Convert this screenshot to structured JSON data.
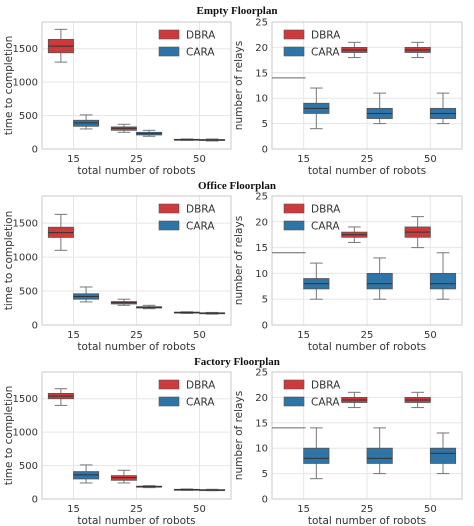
{
  "colors": {
    "dbra": "#cc3a3c",
    "cara": "#2f74a6",
    "grid": "#e6e6e6",
    "median": "#333333"
  },
  "chart_data": [
    {
      "type": "box",
      "row_title": "Empty Floorplan",
      "xlabel": "total number of robots",
      "ylabel": "time to completion",
      "categories": [
        "15",
        "25",
        "50"
      ],
      "ylim": [
        0,
        1900
      ],
      "yticks": [
        "0",
        "500",
        "1000",
        "1500"
      ],
      "legend": [
        "DBRA",
        "CARA"
      ],
      "series": [
        {
          "name": "DBRA",
          "boxes": [
            {
              "whislo": 1300,
              "q1": 1440,
              "med": 1540,
              "q3": 1640,
              "whishi": 1790
            },
            {
              "whislo": 250,
              "q1": 280,
              "med": 310,
              "q3": 330,
              "whishi": 370
            },
            {
              "whislo": 130,
              "q1": 135,
              "med": 140,
              "q3": 145,
              "whishi": 150
            }
          ]
        },
        {
          "name": "CARA",
          "boxes": [
            {
              "whislo": 300,
              "q1": 340,
              "med": 390,
              "q3": 430,
              "whishi": 510
            },
            {
              "whislo": 190,
              "q1": 210,
              "med": 230,
              "q3": 250,
              "whishi": 280
            },
            {
              "whislo": 120,
              "q1": 128,
              "med": 135,
              "q3": 142,
              "whishi": 150
            }
          ]
        }
      ]
    },
    {
      "type": "box",
      "xlabel": "total number of robots",
      "ylabel": "number of relays",
      "categories": [
        "15",
        "25",
        "50"
      ],
      "ylim": [
        0,
        25
      ],
      "yticks": [
        "0",
        "5",
        "10",
        "15",
        "20",
        "25"
      ],
      "legend": [
        "DBRA",
        "CARA"
      ],
      "series": [
        {
          "name": "DBRA",
          "boxes": [
            null,
            {
              "whislo": 18,
              "q1": 19,
              "med": 19.5,
              "q3": 20,
              "whishi": 21
            },
            {
              "whislo": 18,
              "q1": 19,
              "med": 19.5,
              "q3": 20,
              "whishi": 21
            }
          ]
        },
        {
          "name": "CARA",
          "boxes": [
            {
              "whislo": 4,
              "q1": 7,
              "med": 8,
              "q3": 9,
              "whishi": 12,
              "fliers": [
                14
              ]
            },
            {
              "whislo": 5,
              "q1": 6,
              "med": 7,
              "q3": 8,
              "whishi": 11
            },
            {
              "whislo": 5,
              "q1": 6,
              "med": 7,
              "q3": 8,
              "whishi": 11
            }
          ]
        }
      ]
    },
    {
      "type": "box",
      "row_title": "Office Floorplan",
      "xlabel": "total number of robots",
      "ylabel": "time to completion",
      "categories": [
        "15",
        "25",
        "50"
      ],
      "ylim": [
        0,
        1900
      ],
      "yticks": [
        "0",
        "500",
        "1000",
        "1500"
      ],
      "legend": [
        "DBRA",
        "CARA"
      ],
      "series": [
        {
          "name": "DBRA",
          "boxes": [
            {
              "whislo": 1100,
              "q1": 1290,
              "med": 1360,
              "q3": 1440,
              "whishi": 1630
            },
            {
              "whislo": 290,
              "q1": 310,
              "med": 330,
              "q3": 345,
              "whishi": 380
            },
            {
              "whislo": 170,
              "q1": 178,
              "med": 185,
              "q3": 190,
              "whishi": 195
            }
          ]
        },
        {
          "name": "CARA",
          "boxes": [
            {
              "whislo": 340,
              "q1": 380,
              "med": 420,
              "q3": 460,
              "whishi": 560
            },
            {
              "whislo": 240,
              "q1": 250,
              "med": 260,
              "q3": 270,
              "whishi": 290
            },
            {
              "whislo": 160,
              "q1": 168,
              "med": 175,
              "q3": 180,
              "whishi": 185
            }
          ]
        }
      ]
    },
    {
      "type": "box",
      "xlabel": "total number of robots",
      "ylabel": "number of relays",
      "categories": [
        "15",
        "25",
        "50"
      ],
      "ylim": [
        0,
        25
      ],
      "yticks": [
        "0",
        "5",
        "10",
        "15",
        "20",
        "25"
      ],
      "legend": [
        "DBRA",
        "CARA"
      ],
      "series": [
        {
          "name": "DBRA",
          "boxes": [
            null,
            {
              "whislo": 16,
              "q1": 17,
              "med": 17.5,
              "q3": 18,
              "whishi": 19
            },
            {
              "whislo": 15,
              "q1": 17,
              "med": 18,
              "q3": 19,
              "whishi": 21
            }
          ]
        },
        {
          "name": "CARA",
          "boxes": [
            {
              "whislo": 5,
              "q1": 7,
              "med": 8,
              "q3": 9,
              "whishi": 12,
              "fliers": [
                14
              ]
            },
            {
              "whislo": 5,
              "q1": 7,
              "med": 8,
              "q3": 10,
              "whishi": 13
            },
            {
              "whislo": 5,
              "q1": 7,
              "med": 8,
              "q3": 10,
              "whishi": 14
            }
          ]
        }
      ]
    },
    {
      "type": "box",
      "row_title": "Factory Floorplan",
      "xlabel": "total number of robots",
      "ylabel": "time to completion",
      "categories": [
        "15",
        "25",
        "50"
      ],
      "ylim": [
        0,
        1900
      ],
      "yticks": [
        "0",
        "500",
        "1000",
        "1500"
      ],
      "legend": [
        "DBRA",
        "CARA"
      ],
      "series": [
        {
          "name": "DBRA",
          "boxes": [
            {
              "whislo": 1400,
              "q1": 1500,
              "med": 1540,
              "q3": 1580,
              "whishi": 1650
            },
            {
              "whislo": 240,
              "q1": 280,
              "med": 320,
              "q3": 350,
              "whishi": 430
            },
            {
              "whislo": 130,
              "q1": 135,
              "med": 140,
              "q3": 145,
              "whishi": 150
            }
          ]
        },
        {
          "name": "CARA",
          "boxes": [
            {
              "whislo": 240,
              "q1": 300,
              "med": 360,
              "q3": 410,
              "whishi": 510
            },
            {
              "whislo": 170,
              "q1": 178,
              "med": 185,
              "q3": 192,
              "whishi": 200
            },
            {
              "whislo": 125,
              "q1": 130,
              "med": 135,
              "q3": 140,
              "whishi": 145
            }
          ]
        }
      ]
    },
    {
      "type": "box",
      "xlabel": "total number of robots",
      "ylabel": "number of relays",
      "categories": [
        "15",
        "25",
        "50"
      ],
      "ylim": [
        0,
        25
      ],
      "yticks": [
        "0",
        "5",
        "10",
        "15",
        "20",
        "25"
      ],
      "legend": [
        "DBRA",
        "CARA"
      ],
      "series": [
        {
          "name": "DBRA",
          "boxes": [
            null,
            {
              "whislo": 18,
              "q1": 19,
              "med": 19.5,
              "q3": 20,
              "whishi": 21
            },
            {
              "whislo": 18,
              "q1": 19,
              "med": 19.5,
              "q3": 20,
              "whishi": 21
            }
          ]
        },
        {
          "name": "CARA",
          "boxes": [
            {
              "whislo": 4,
              "q1": 7,
              "med": 8,
              "q3": 10,
              "whishi": 14,
              "fliers": [
                14
              ]
            },
            {
              "whislo": 5,
              "q1": 7,
              "med": 8,
              "q3": 10,
              "whishi": 14
            },
            {
              "whislo": 5,
              "q1": 7,
              "med": 9,
              "q3": 10,
              "whishi": 13
            }
          ]
        }
      ]
    }
  ]
}
